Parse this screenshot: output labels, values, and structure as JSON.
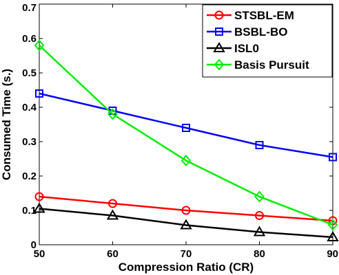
{
  "chart_data": {
    "type": "line",
    "title": "",
    "xlabel": "Compression Ratio (CR)",
    "ylabel": "Consumed Time (s.)",
    "x": [
      50,
      60,
      70,
      80,
      90
    ],
    "xlim": [
      50,
      90
    ],
    "ylim": [
      0,
      0.7
    ],
    "xticks": [
      "50",
      "60",
      "70",
      "80",
      "90"
    ],
    "yticks": [
      "0",
      "0.1",
      "0.2",
      "0.3",
      "0.4",
      "0.5",
      "0.6",
      "0.7"
    ],
    "grid": false,
    "legend_position": "top-right",
    "series": [
      {
        "name": "STSBL-EM",
        "color": "#ff0000",
        "marker": "circle",
        "values": [
          0.14,
          0.12,
          0.1,
          0.085,
          0.07
        ]
      },
      {
        "name": "BSBL-BO",
        "color": "#0000ff",
        "marker": "square",
        "values": [
          0.44,
          0.39,
          0.34,
          0.29,
          0.255
        ]
      },
      {
        "name": "ISL0",
        "color": "#000000",
        "marker": "triangle",
        "values": [
          0.105,
          0.085,
          0.057,
          0.037,
          0.022
        ]
      },
      {
        "name": "Basis Pursuit",
        "color": "#00ee00",
        "marker": "diamond",
        "values": [
          0.58,
          0.38,
          0.245,
          0.14,
          0.058
        ]
      }
    ]
  }
}
